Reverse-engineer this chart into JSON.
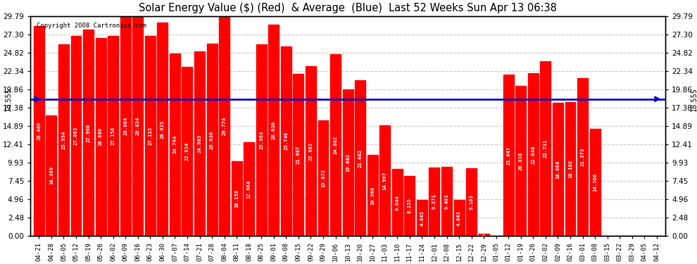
{
  "title": "Solar Energy Value ($) (Red)  & Average  (Blue)  Last 52 Weeks Sun Apr 13 06:38",
  "average": 18.555,
  "bar_color": "#ff0000",
  "avg_line_color": "#0000cc",
  "background_color": "#ffffff",
  "plot_bg_color": "#ffffff",
  "grid_color": "#cccccc",
  "copyright_text": "Copyright 2008 Cartronics.com",
  "avg_label": "18.555",
  "yticks": [
    0.0,
    2.48,
    4.96,
    7.45,
    9.93,
    12.41,
    14.89,
    17.38,
    19.86,
    22.34,
    24.82,
    27.3,
    29.79
  ],
  "xlabels": [
    "04-21",
    "04-28",
    "05-05",
    "05-12",
    "05-19",
    "05-26",
    "06-02",
    "06-09",
    "06-16",
    "06-23",
    "06-30",
    "07-07",
    "07-14",
    "07-21",
    "07-28",
    "08-04",
    "08-11",
    "08-18",
    "08-25",
    "09-01",
    "09-08",
    "09-15",
    "09-22",
    "09-29",
    "10-06",
    "10-13",
    "10-20",
    "10-27",
    "11-03",
    "11-10",
    "11-17",
    "11-24",
    "12-01",
    "12-08",
    "12-15",
    "12-22",
    "12-29",
    "01-05",
    "01-12",
    "01-19",
    "01-26",
    "02-02",
    "02-09",
    "02-16",
    "03-01",
    "03-08",
    "03-15",
    "03-22",
    "03-29",
    "04-05",
    "04-12"
  ],
  "values": [
    28.48,
    16.369,
    25.934,
    27.093,
    27.96,
    26.86,
    27.156,
    29.864,
    29.834,
    27.115,
    28.935,
    24.764,
    22.934,
    24.985,
    26.03,
    29.774,
    10.158,
    12.664,
    25.963,
    28.63,
    25.74,
    21.987,
    22.982,
    15.672,
    24.682,
    19.882,
    21.082,
    10.96,
    14.997,
    9.044,
    8.155,
    4.845,
    9.271,
    9.401,
    4.843,
    9.163,
    0.317,
    0.0,
    21.847,
    20.338,
    22.048,
    23.731,
    18.004,
    18.182,
    21.373,
    14.506,
    0.0,
    0.0,
    0.0,
    0.0,
    0.0
  ],
  "ylim": [
    0,
    29.79
  ],
  "figsize": [
    9.9,
    3.75
  ],
  "dpi": 100
}
